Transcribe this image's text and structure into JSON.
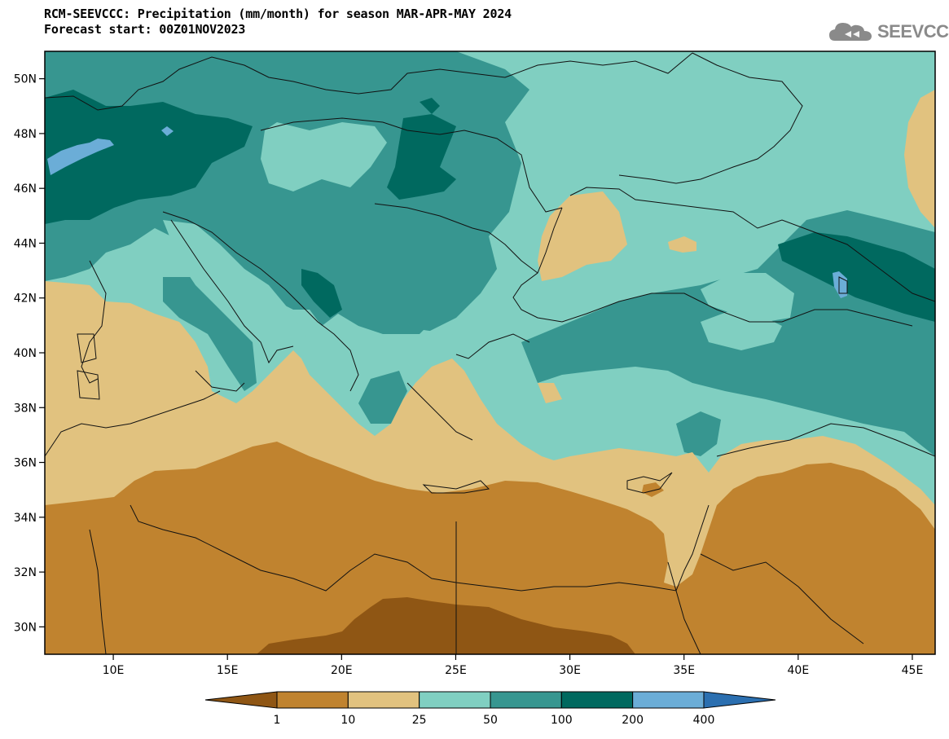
{
  "title": {
    "line1": "RCM-SEEVCCC: Precipitation (mm/month) for season MAR-APR-MAY 2024",
    "line2": "Forecast start: 00Z01NOV2023"
  },
  "brand": {
    "name": "SEEVCCC",
    "icon": "cloud-logo-icon"
  },
  "map": {
    "x_ticks": [
      "10E",
      "15E",
      "20E",
      "25E",
      "30E",
      "35E",
      "40E",
      "45E"
    ],
    "y_ticks": [
      "50N",
      "48N",
      "46N",
      "44N",
      "42N",
      "40N",
      "38N",
      "36N",
      "34N",
      "32N",
      "30N"
    ],
    "lon_range": [
      7,
      46
    ],
    "lat_range": [
      29,
      51
    ]
  },
  "legend": {
    "ticks": [
      "1",
      "10",
      "25",
      "50",
      "100",
      "200",
      "400"
    ],
    "colors": [
      "#8f5614",
      "#c0832f",
      "#e1c27f",
      "#80cfc1",
      "#379690",
      "#00695f",
      "#6badd7",
      "#2b6fb0"
    ]
  }
}
